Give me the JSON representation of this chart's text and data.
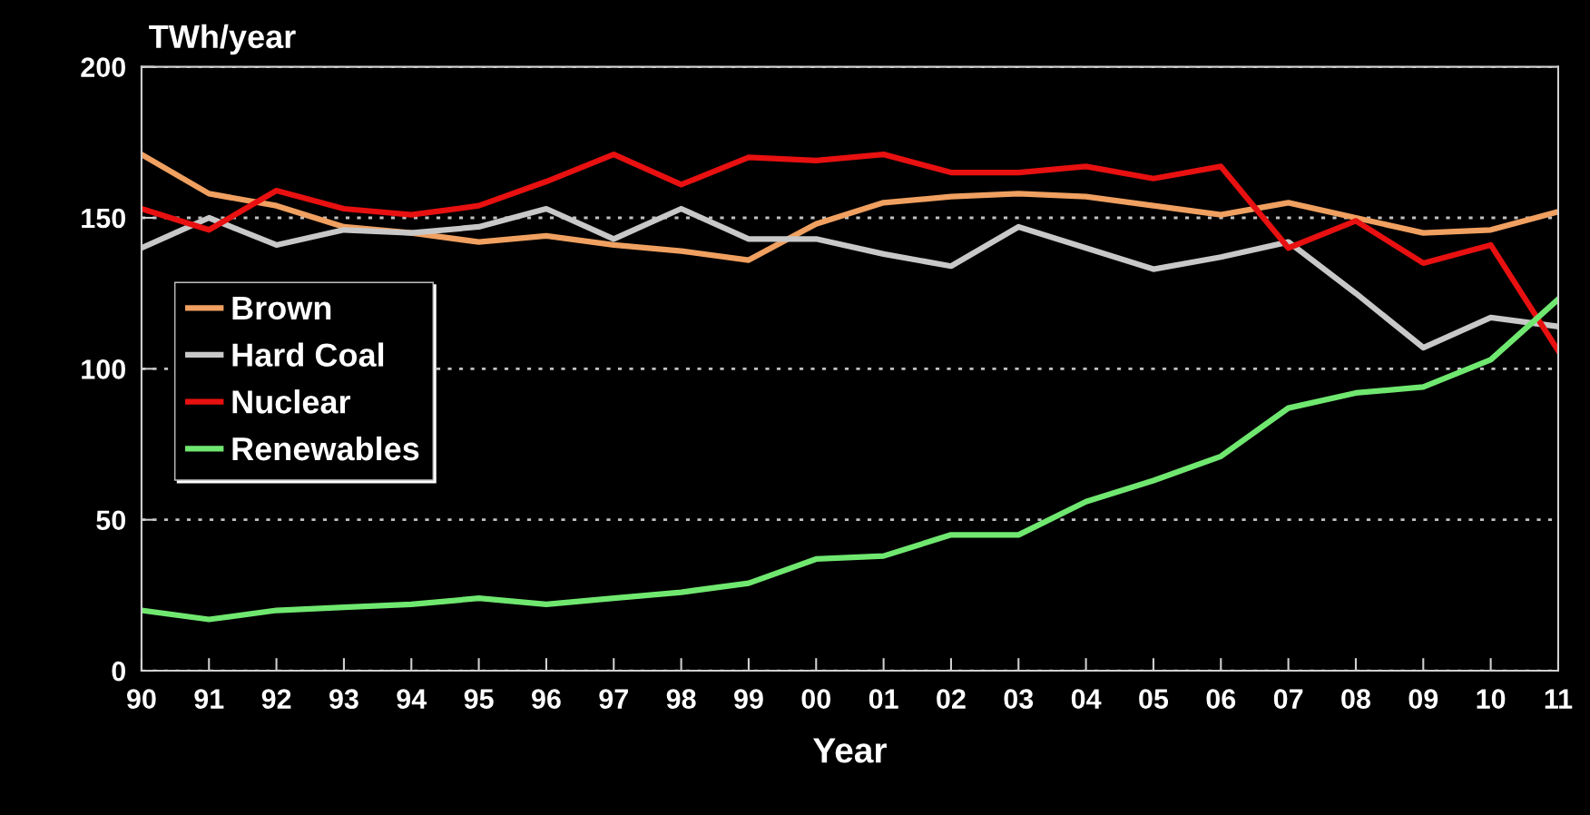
{
  "chart_data": {
    "type": "line",
    "xlabel": "Year",
    "ylabel": "TWh/year",
    "categories": [
      "90",
      "91",
      "92",
      "93",
      "94",
      "95",
      "96",
      "97",
      "98",
      "99",
      "00",
      "01",
      "02",
      "03",
      "04",
      "05",
      "06",
      "07",
      "08",
      "09",
      "10",
      "11"
    ],
    "series": [
      {
        "name": "Brown",
        "color": "#f0a060",
        "values": [
          171,
          158,
          154,
          147,
          145,
          142,
          144,
          141,
          139,
          136,
          148,
          155,
          157,
          158,
          157,
          154,
          151,
          155,
          150,
          145,
          146,
          152
        ]
      },
      {
        "name": "Hard Coal",
        "color": "#c8c8c8",
        "values": [
          140,
          150,
          141,
          146,
          145,
          147,
          153,
          143,
          153,
          143,
          143,
          138,
          134,
          147,
          140,
          133,
          137,
          142,
          125,
          107,
          117,
          114
        ]
      },
      {
        "name": "Nuclear",
        "color": "#e81010",
        "values": [
          153,
          146,
          159,
          153,
          151,
          154,
          162,
          171,
          161,
          170,
          169,
          171,
          165,
          165,
          167,
          163,
          167,
          140,
          149,
          135,
          141,
          106
        ]
      },
      {
        "name": "Renewables",
        "color": "#70e870",
        "values": [
          20,
          17,
          20,
          21,
          22,
          24,
          22,
          24,
          26,
          29,
          37,
          38,
          45,
          45,
          56,
          63,
          71,
          87,
          92,
          94,
          103,
          123
        ]
      }
    ],
    "ylim": [
      0,
      200
    ],
    "yticks": [
      0,
      50,
      100,
      150,
      200
    ],
    "grid": "y",
    "legend": "left",
    "marker": "none",
    "line_style": "solid"
  }
}
